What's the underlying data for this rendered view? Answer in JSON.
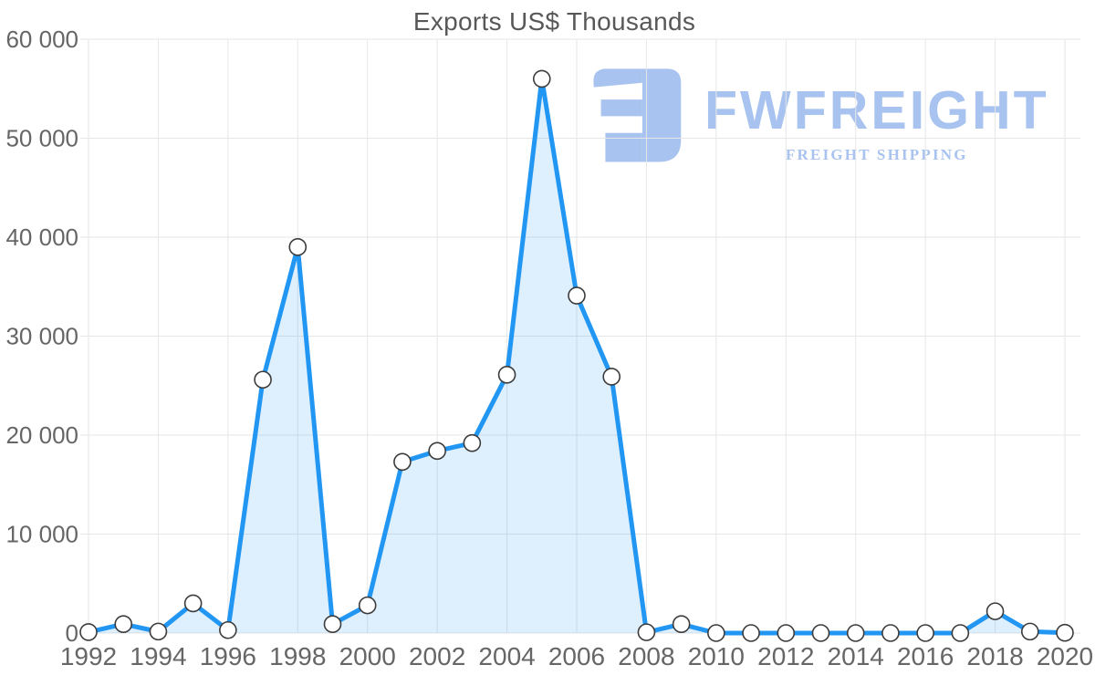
{
  "chart_data": {
    "type": "area",
    "title": "Exports US$ Thousands",
    "xlabel": "",
    "ylabel": "",
    "x": [
      1992,
      1993,
      1994,
      1995,
      1996,
      1997,
      1998,
      1999,
      2000,
      2001,
      2002,
      2003,
      2004,
      2005,
      2006,
      2007,
      2008,
      2009,
      2010,
      2011,
      2012,
      2013,
      2014,
      2015,
      2016,
      2017,
      2018,
      2019,
      2020
    ],
    "values": [
      100,
      900,
      150,
      3000,
      300,
      25600,
      39000,
      900,
      2800,
      17300,
      18400,
      19200,
      26100,
      56000,
      34100,
      25900,
      80,
      900,
      0,
      0,
      0,
      0,
      0,
      0,
      0,
      0,
      2200,
      150,
      30
    ],
    "ylim": [
      0,
      60000
    ],
    "yticks": [
      0,
      10000,
      20000,
      30000,
      40000,
      50000,
      60000
    ],
    "ytick_labels": [
      "0",
      "10 000",
      "20 000",
      "30 000",
      "40 000",
      "50 000",
      "60 000"
    ],
    "xticks": [
      1992,
      1994,
      1996,
      1998,
      2000,
      2002,
      2004,
      2006,
      2008,
      2010,
      2012,
      2014,
      2016,
      2018,
      2020
    ],
    "xtick_labels": [
      "1992",
      "1994",
      "1996",
      "1998",
      "2000",
      "2002",
      "2004",
      "2006",
      "2008",
      "2010",
      "2012",
      "2014",
      "2016",
      "2018",
      "2020"
    ],
    "grid": true,
    "legend": false,
    "marker": "circle"
  },
  "logo": {
    "wordmark": "FWFREIGHT",
    "tagline": "FREIGHT SHIPPING"
  },
  "colors": {
    "line": "#2196f3",
    "area_fill": "rgba(33,150,243,0.15)",
    "marker_fill": "#ffffff",
    "marker_stroke": "#3c3c3c",
    "grid": "#e6e6e6",
    "axis_label": "#666666",
    "title": "#585858",
    "logo": "#a8c3ef"
  }
}
